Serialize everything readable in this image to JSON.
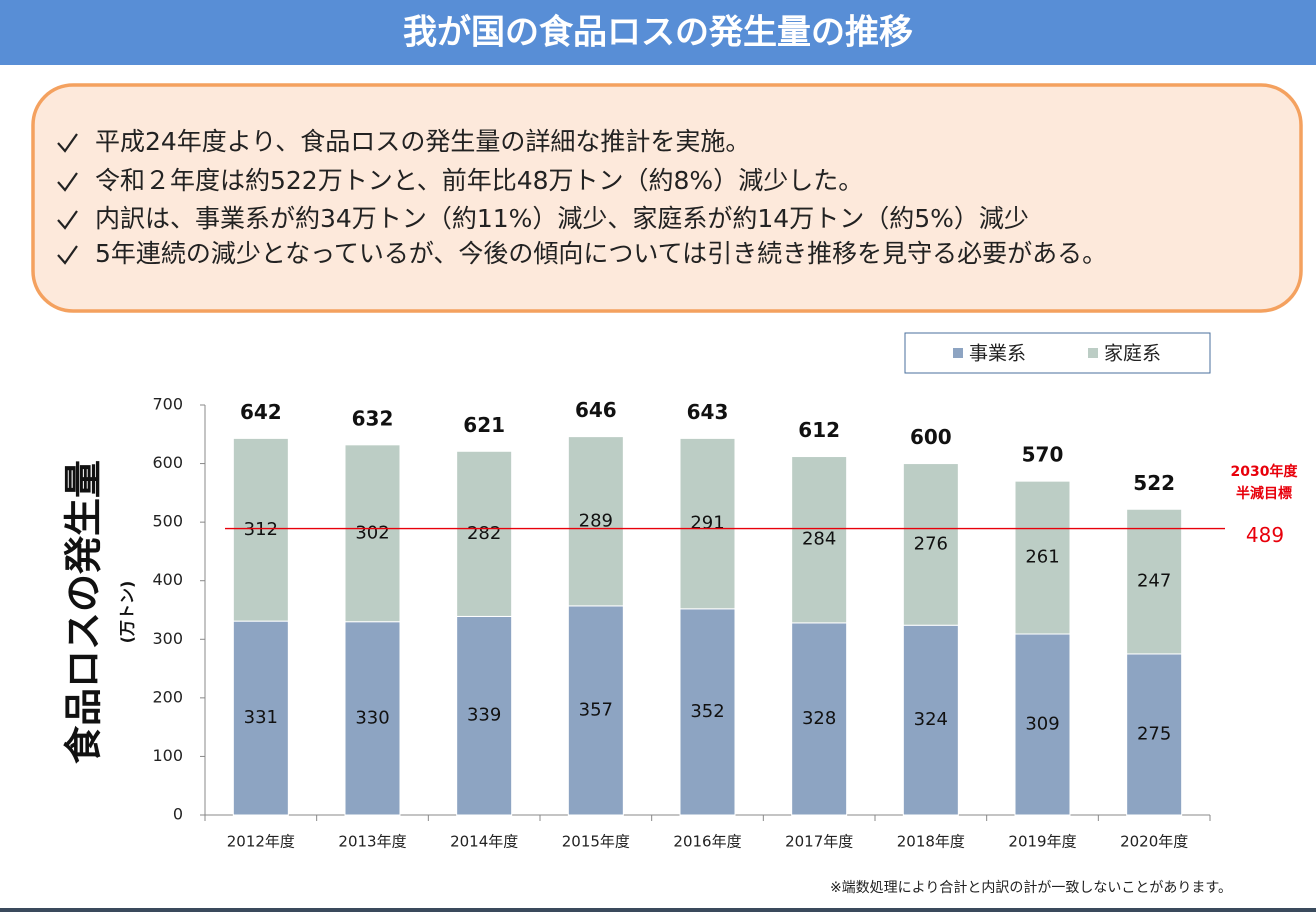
{
  "header": {
    "title": "我が国の食品ロスの発生量の推移"
  },
  "summary": {
    "bullets": [
      "平成24年度より、食品ロスの発生量の詳細な推計を実施。",
      "令和２年度は約522万トンと、前年比48万トン（約8%）減少した。",
      "内訳は、事業系が約34万トン（約11%）減少、家庭系が約14万トン（約5%）減少",
      "5年連続の減少となっているが、今後の傾向については引き続き推移を見守る必要がある。"
    ]
  },
  "chart_data": {
    "type": "stacked_bar",
    "y_label": "食品ロスの発生量",
    "y_unit": "(万トン)",
    "categories": [
      "2012年度",
      "2013年度",
      "2014年度",
      "2015年度",
      "2016年度",
      "2017年度",
      "2018年度",
      "2019年度",
      "2020年度"
    ],
    "series": [
      {
        "name": "事業系",
        "color": "#8da4c2",
        "values": [
          331,
          330,
          339,
          357,
          352,
          328,
          324,
          309,
          275
        ]
      },
      {
        "name": "家庭系",
        "color": "#bccdc5",
        "values": [
          312,
          302,
          282,
          289,
          291,
          284,
          276,
          261,
          247
        ]
      }
    ],
    "totals": [
      642,
      632,
      621,
      646,
      643,
      612,
      600,
      570,
      522
    ],
    "target": {
      "value": 489,
      "label": [
        "2030年度",
        "半減目標"
      ],
      "color": "#e8000b"
    },
    "ylim": [
      0,
      700
    ],
    "yticks": [
      0,
      100,
      200,
      300,
      400,
      500,
      600,
      700
    ],
    "legend": "top-right"
  },
  "footnote": "※端数処理により合計と内訳の計が一致しないことがあります。"
}
